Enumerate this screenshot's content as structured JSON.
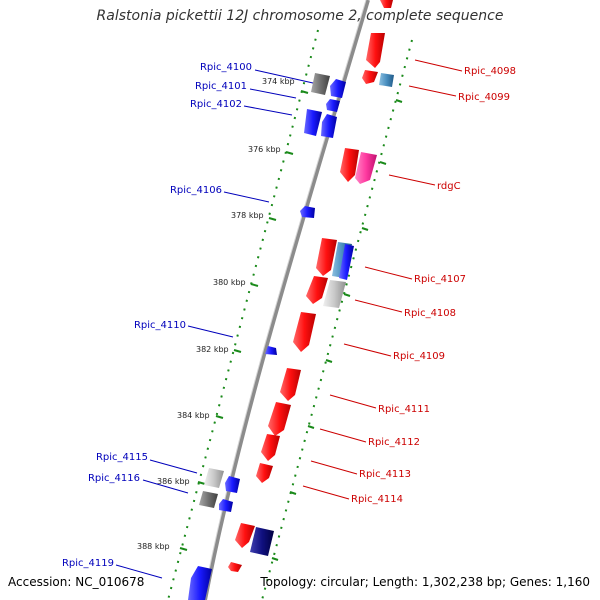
{
  "title": "Ralstonia pickettii 12J chromosome 2, complete sequence",
  "accession": "Accession: NC_010678",
  "topology": "Topology: circular; Length: 1,302,238 bp; Genes: 1,160",
  "kbp_labels": [
    "374 kbp",
    "376 kbp",
    "378 kbp",
    "380 kbp",
    "382 kbp",
    "384 kbp",
    "386 kbp",
    "388 kbp"
  ],
  "left_labels": [
    "Rpic_4100",
    "Rpic_4101",
    "Rpic_4102",
    "Rpic_4106",
    "Rpic_4110",
    "Rpic_4115",
    "Rpic_4116",
    "Rpic_4119"
  ],
  "right_labels": [
    "Rpic_4098",
    "Rpic_4099",
    "rdgC",
    "Rpic_4107",
    "Rpic_4108",
    "Rpic_4109",
    "Rpic_4111",
    "Rpic_4112",
    "Rpic_4113",
    "Rpic_4114"
  ],
  "colors": {
    "forward": "#ff1010",
    "reverse": "#1a1aff",
    "pink": "#ff3aa0",
    "steel": "#4a8fc0",
    "gray": "#707070",
    "light_gray": "#c8c8c8",
    "navy": "#101080",
    "backbone": "#8c8c8c",
    "tick": "#1a8a1a"
  }
}
